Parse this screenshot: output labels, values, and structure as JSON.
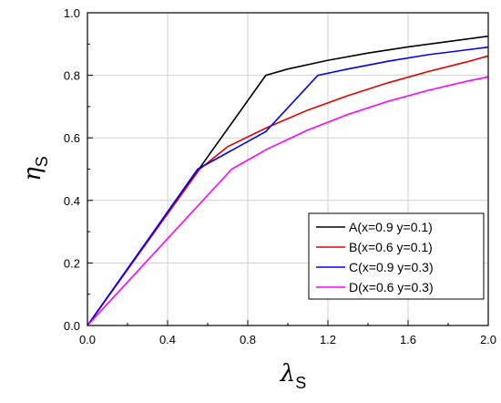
{
  "chart_data": {
    "type": "line",
    "xlabel_symbol": "λ",
    "xlabel_sub": "S",
    "ylabel_symbol": "η",
    "ylabel_sub": "S",
    "xlim": [
      0.0,
      2.0
    ],
    "ylim": [
      0.0,
      1.0
    ],
    "xticks": [
      "0.0",
      "0.4",
      "0.8",
      "1.2",
      "1.6",
      "2.0"
    ],
    "yticks": [
      "0.0",
      "0.2",
      "0.4",
      "0.6",
      "0.8",
      "1.0"
    ],
    "grid": true,
    "legend_position": "bottom-right",
    "series": [
      {
        "name": "A(x=0.9 y=0.1)",
        "color": "#000000",
        "x": [
          0.0,
          0.89,
          1.0,
          1.2,
          1.4,
          1.6,
          1.8,
          2.0
        ],
        "y": [
          0.0,
          0.8,
          0.82,
          0.848,
          0.871,
          0.891,
          0.908,
          0.925
        ]
      },
      {
        "name": "B(x=0.6 y=0.1)",
        "color": "#e00000",
        "x": [
          0.0,
          0.56,
          0.7,
          0.9,
          1.1,
          1.3,
          1.5,
          1.7,
          1.9,
          2.0
        ],
        "y": [
          0.0,
          0.5,
          0.572,
          0.634,
          0.689,
          0.735,
          0.776,
          0.812,
          0.844,
          0.862
        ]
      },
      {
        "name": "C(x=0.9 y=0.3)",
        "color": "#0000ee",
        "x": [
          0.0,
          0.55,
          0.89,
          1.15,
          1.3,
          1.5,
          1.7,
          1.9,
          2.0
        ],
        "y": [
          0.0,
          0.5,
          0.62,
          0.8,
          0.82,
          0.845,
          0.866,
          0.882,
          0.89
        ]
      },
      {
        "name": "D(x=0.6 y=0.3)",
        "color": "#ff00ff",
        "x": [
          0.0,
          0.72,
          0.9,
          1.1,
          1.3,
          1.5,
          1.7,
          1.9,
          2.0
        ],
        "y": [
          0.0,
          0.5,
          0.565,
          0.625,
          0.675,
          0.717,
          0.752,
          0.782,
          0.795
        ]
      }
    ]
  }
}
